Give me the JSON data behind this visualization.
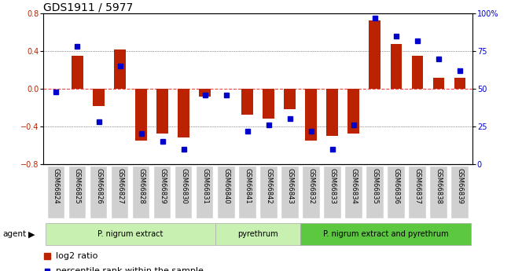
{
  "title": "GDS1911 / 5977",
  "samples": [
    "GSM66824",
    "GSM66825",
    "GSM66826",
    "GSM66827",
    "GSM66828",
    "GSM66829",
    "GSM66830",
    "GSM66831",
    "GSM66840",
    "GSM66841",
    "GSM66842",
    "GSM66843",
    "GSM66832",
    "GSM66833",
    "GSM66834",
    "GSM66835",
    "GSM66836",
    "GSM66837",
    "GSM66838",
    "GSM66839"
  ],
  "log2_ratio": [
    0.0,
    0.35,
    -0.18,
    0.42,
    -0.55,
    -0.48,
    -0.52,
    -0.08,
    0.0,
    -0.28,
    -0.32,
    -0.22,
    -0.55,
    -0.5,
    -0.48,
    0.73,
    0.48,
    0.35,
    0.12,
    0.12
  ],
  "percentile": [
    48,
    78,
    28,
    65,
    20,
    15,
    10,
    46,
    46,
    22,
    26,
    30,
    22,
    10,
    26,
    97,
    85,
    82,
    70,
    62
  ],
  "groups": [
    {
      "label": "P. nigrum extract",
      "start": 0,
      "end": 8,
      "color": "#c8f0b0"
    },
    {
      "label": "pyrethrum",
      "start": 8,
      "end": 12,
      "color": "#c8f0b0"
    },
    {
      "label": "P. nigrum extract and pyrethrum",
      "start": 12,
      "end": 20,
      "color": "#5cc840"
    }
  ],
  "ylim_left": [
    -0.8,
    0.8
  ],
  "ylim_right": [
    0,
    100
  ],
  "yticks_left": [
    -0.8,
    -0.4,
    0.0,
    0.4,
    0.8
  ],
  "yticks_right": [
    0,
    25,
    50,
    75,
    100
  ],
  "ytick_labels_right": [
    "0",
    "25",
    "50",
    "75",
    "100%"
  ],
  "bar_color": "#bb2200",
  "marker_color": "#0000cc",
  "zero_line_color": "#ee4444",
  "dot_line_color": "#333333",
  "tick_fontsize": 7,
  "legend_fontsize": 8,
  "bar_width": 0.55,
  "xlabel_gray": "#c8c8c8"
}
